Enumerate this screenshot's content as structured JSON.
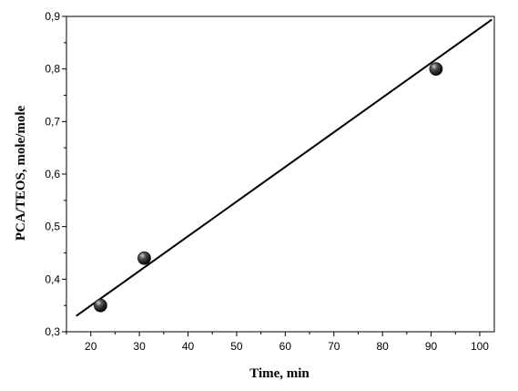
{
  "chart_data": {
    "type": "scatter",
    "title": "",
    "xlabel": "Time, min",
    "ylabel": "PCA/TEOS,  mole/mole",
    "xlim": [
      15,
      103
    ],
    "ylim": [
      0.3,
      0.9
    ],
    "x_ticks": [
      20,
      30,
      40,
      50,
      60,
      70,
      80,
      90,
      100
    ],
    "x_tick_labels": [
      "20",
      "30",
      "40",
      "50",
      "60",
      "70",
      "80",
      "90",
      "100"
    ],
    "y_ticks": [
      0.3,
      0.4,
      0.5,
      0.6,
      0.7,
      0.8,
      0.9
    ],
    "y_tick_labels": [
      "0,3",
      "0,4",
      "0,5",
      "0,6",
      "0,7",
      "0,8",
      "0,9"
    ],
    "grid": false,
    "points": [
      {
        "x": 22,
        "y": 0.35
      },
      {
        "x": 31,
        "y": 0.44
      },
      {
        "x": 91,
        "y": 0.8
      }
    ],
    "fit_line": {
      "x": [
        17,
        102.5
      ],
      "y": [
        0.33,
        0.894
      ]
    },
    "colors": {
      "marker": "#1a1a1a",
      "line": "#000000",
      "axes": "#000000"
    }
  }
}
